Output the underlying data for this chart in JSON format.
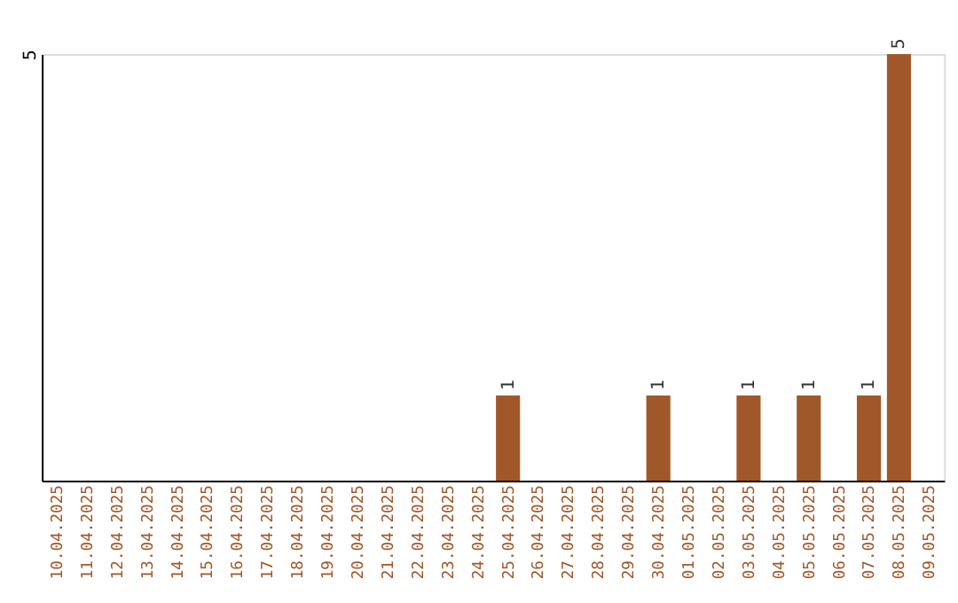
{
  "chart_data": {
    "type": "bar",
    "categories": [
      "10.04.2025",
      "11.04.2025",
      "12.04.2025",
      "13.04.2025",
      "14.04.2025",
      "15.04.2025",
      "16.04.2025",
      "17.04.2025",
      "18.04.2025",
      "19.04.2025",
      "20.04.2025",
      "21.04.2025",
      "22.04.2025",
      "23.04.2025",
      "24.04.2025",
      "25.04.2025",
      "26.04.2025",
      "27.04.2025",
      "28.04.2025",
      "29.04.2025",
      "30.04.2025",
      "01.05.2025",
      "02.05.2025",
      "03.05.2025",
      "04.05.2025",
      "05.05.2025",
      "06.05.2025",
      "07.05.2025",
      "08.05.2025",
      "09.05.2025"
    ],
    "values": [
      null,
      null,
      null,
      null,
      null,
      null,
      null,
      null,
      null,
      null,
      null,
      null,
      null,
      null,
      null,
      1,
      null,
      null,
      null,
      null,
      1,
      null,
      null,
      1,
      null,
      1,
      null,
      1,
      5,
      null
    ],
    "value_labels": [
      null,
      null,
      null,
      null,
      null,
      null,
      null,
      null,
      null,
      null,
      null,
      null,
      null,
      null,
      null,
      "1",
      null,
      null,
      null,
      null,
      "1",
      null,
      null,
      "1",
      null,
      "1",
      null,
      "1",
      "5",
      null
    ],
    "color": "#a0582a",
    "ylim": [
      0,
      5
    ],
    "yticks": [
      5
    ]
  }
}
